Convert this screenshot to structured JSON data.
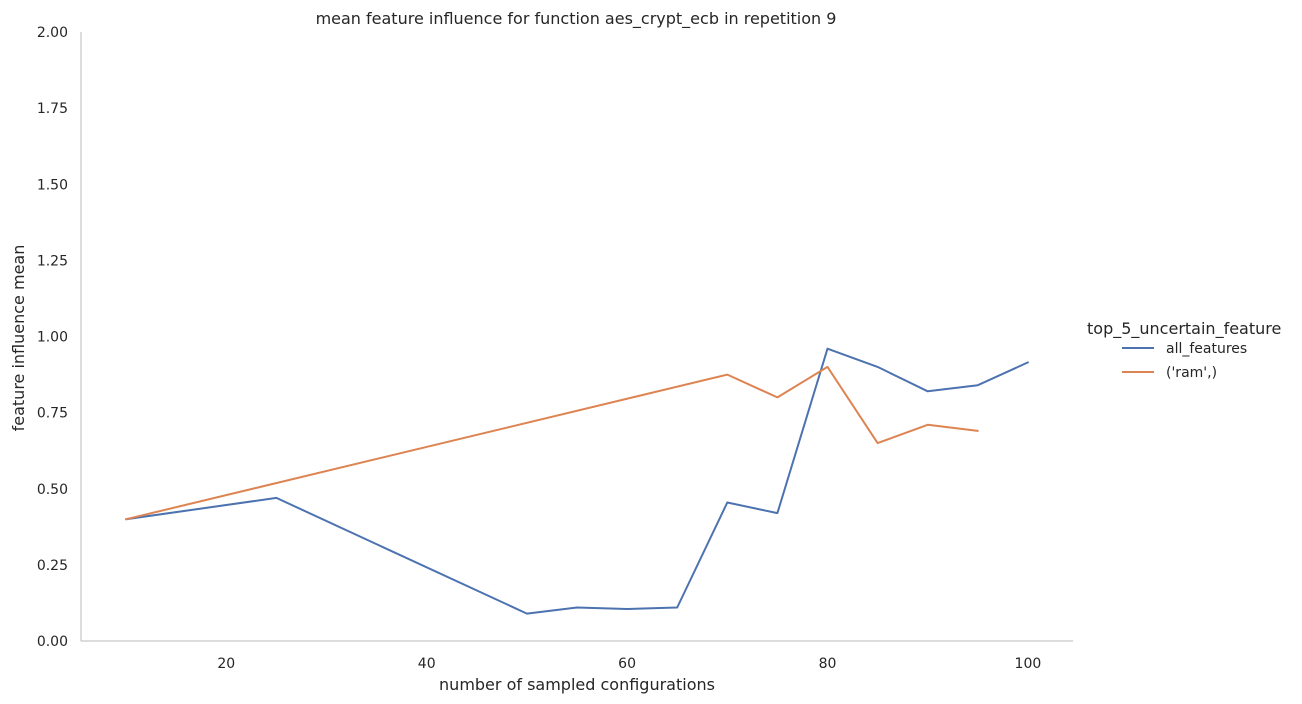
{
  "chart_data": {
    "type": "line",
    "title": "mean feature influence for function aes_crypt_ecb in repetition 9",
    "xlabel": "number of sampled configurations",
    "ylabel": "feature influence mean",
    "xlim": [
      5.5,
      104.5
    ],
    "ylim": [
      0,
      2
    ],
    "xticks": [
      20,
      40,
      60,
      80,
      100
    ],
    "yticks": [
      0.0,
      0.25,
      0.5,
      0.75,
      1.0,
      1.25,
      1.5,
      1.75,
      2.0
    ],
    "ytick_labels": [
      "0.00",
      "0.25",
      "0.50",
      "0.75",
      "1.00",
      "1.25",
      "1.50",
      "1.75",
      "2.00"
    ],
    "grid": false,
    "legend": {
      "title": "top_5_uncertain_feature",
      "placement": "right"
    },
    "series": [
      {
        "name": "all_features",
        "color": "#4c72b0",
        "x": [
          10,
          25,
          50,
          55,
          60,
          65,
          70,
          75,
          80,
          85,
          90,
          95,
          100
        ],
        "y": [
          0.4,
          0.47,
          0.09,
          0.11,
          0.105,
          0.11,
          0.455,
          0.42,
          0.96,
          0.9,
          0.82,
          0.84,
          0.915
        ]
      },
      {
        "name": "('ram',)",
        "color": "#dd8452",
        "x": [
          10,
          70,
          75,
          80,
          85,
          90,
          95
        ],
        "y": [
          0.4,
          0.875,
          0.8,
          0.9,
          0.65,
          0.71,
          0.69
        ]
      }
    ]
  }
}
